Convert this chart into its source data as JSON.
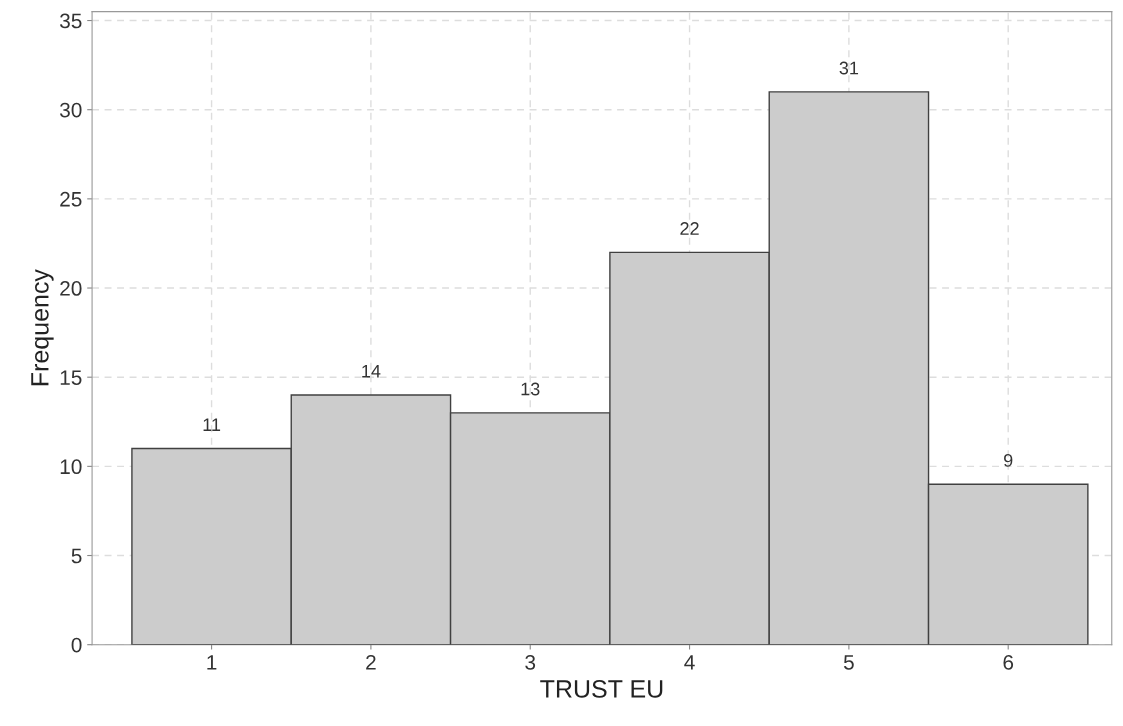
{
  "chart_data": {
    "type": "histogram",
    "xlabel": "TRUST EU",
    "ylabel": "Frequency",
    "bins": [
      0.5,
      1.5,
      2.5,
      3.5,
      4.5,
      5.5,
      6.5
    ],
    "values": [
      11,
      14,
      13,
      22,
      31,
      9
    ],
    "color": "#cccccc",
    "xlim": [
      0.25,
      6.65
    ],
    "xticks": [
      1,
      2,
      3,
      4,
      5,
      6
    ],
    "ylim": [
      0,
      35.5
    ],
    "yticks": [
      0,
      5,
      10,
      15,
      20,
      25,
      30,
      35
    ],
    "grid": true,
    "data_labels": true
  }
}
